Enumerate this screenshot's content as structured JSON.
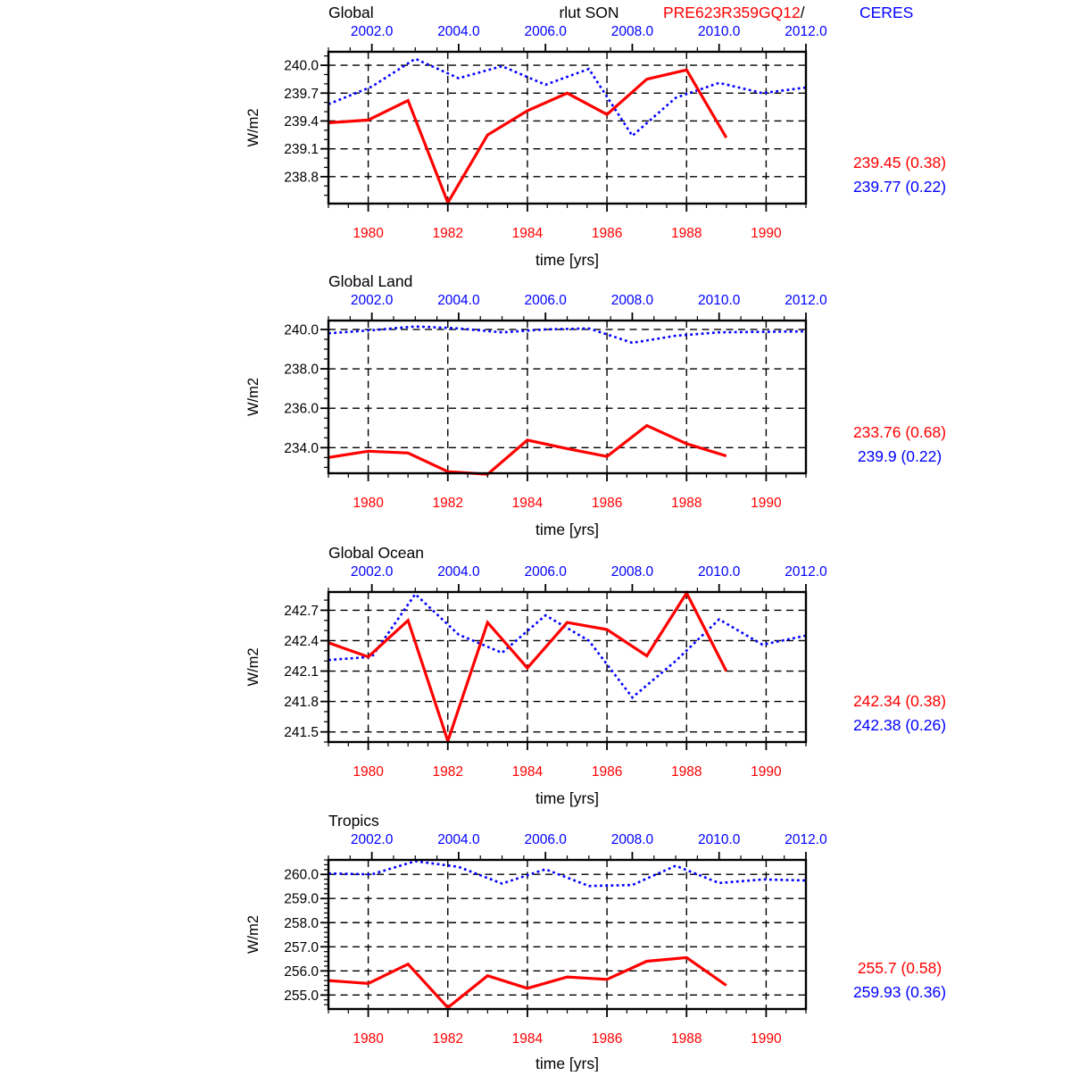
{
  "page": {
    "background": "#ffffff"
  },
  "header": {
    "center_title": "rlut SON",
    "model_label": "PRE623R359GQ12",
    "separator": "/",
    "reference_label": "CERES",
    "model_color": "#ff0000",
    "reference_color": "#0000ff"
  },
  "chart_data": [
    {
      "type": "line",
      "id": "global",
      "title": "Global",
      "ylabel": "W/m2",
      "xlabel": "time [yrs]",
      "ylim": [
        238.51,
        240.145
      ],
      "ytick_values": [
        238.8,
        239.1,
        239.4,
        239.7,
        240.0
      ],
      "ytick_labels": [
        "238.8",
        "239.1",
        "239.4",
        "239.7",
        "240.0"
      ],
      "y_minor_step": 0.1,
      "x_bottom": {
        "lim": [
          1979,
          1991
        ],
        "tick_values": [
          1980,
          1982,
          1984,
          1986,
          1988,
          1990
        ],
        "tick_labels": [
          "1980",
          "1982",
          "1984",
          "1986",
          "1988",
          "1990"
        ],
        "minor_step": 0.5,
        "label_color": "#ff0000"
      },
      "x_top": {
        "lim": [
          2001,
          2012
        ],
        "tick_values": [
          2002,
          2004,
          2006,
          2008,
          2010,
          2012
        ],
        "tick_labels": [
          "2002.0",
          "2004.0",
          "2006.0",
          "2008.0",
          "2010.0",
          "2012.0"
        ],
        "minor_step": 0.5,
        "label_color": "#0000ff"
      },
      "series": [
        {
          "name": "CERES",
          "axis": "top",
          "color": "#0000ff",
          "style": "dotted",
          "x": [
            2001,
            2002,
            2003,
            2004,
            2005,
            2006,
            2007,
            2008,
            2009,
            2010,
            2011,
            2012
          ],
          "y": [
            239.58,
            239.77,
            240.07,
            239.86,
            239.99,
            239.79,
            239.96,
            239.24,
            239.65,
            239.81,
            239.7,
            239.76
          ]
        },
        {
          "name": "PRE623R359GQ12",
          "axis": "bottom",
          "color": "#ff0000",
          "style": "solid",
          "x": [
            1979,
            1980,
            1981,
            1982,
            1983,
            1984,
            1985,
            1986,
            1987,
            1988,
            1989
          ],
          "y": [
            239.38,
            239.41,
            239.62,
            238.52,
            239.25,
            239.51,
            239.7,
            239.47,
            239.85,
            239.95,
            239.22
          ]
        }
      ],
      "stats": [
        {
          "text": "239.45 (0.38)",
          "color": "#ff0000"
        },
        {
          "text": "239.77 (0.22)",
          "color": "#0000ff"
        }
      ]
    },
    {
      "type": "line",
      "id": "global-land",
      "title": "Global Land",
      "ylabel": "W/m2",
      "xlabel": "time [yrs]",
      "ylim": [
        232.7,
        240.45
      ],
      "ytick_values": [
        234.0,
        236.0,
        238.0,
        240.0
      ],
      "ytick_labels": [
        "234.0",
        "236.0",
        "238.0",
        "240.0"
      ],
      "y_minor_step": 0.5,
      "x_bottom": {
        "lim": [
          1979,
          1991
        ],
        "tick_values": [
          1980,
          1982,
          1984,
          1986,
          1988,
          1990
        ],
        "tick_labels": [
          "1980",
          "1982",
          "1984",
          "1986",
          "1988",
          "1990"
        ],
        "minor_step": 0.5,
        "label_color": "#ff0000"
      },
      "x_top": {
        "lim": [
          2001,
          2012
        ],
        "tick_values": [
          2002,
          2004,
          2006,
          2008,
          2010,
          2012
        ],
        "tick_labels": [
          "2002.0",
          "2004.0",
          "2006.0",
          "2008.0",
          "2010.0",
          "2012.0"
        ],
        "minor_step": 0.5,
        "label_color": "#0000ff"
      },
      "series": [
        {
          "name": "CERES",
          "axis": "top",
          "color": "#0000ff",
          "style": "dotted",
          "x": [
            2001,
            2002,
            2003,
            2004,
            2005,
            2006,
            2007,
            2008,
            2009,
            2010,
            2011,
            2012
          ],
          "y": [
            239.8,
            239.96,
            240.15,
            240.05,
            239.85,
            240.0,
            240.05,
            239.32,
            239.68,
            239.85,
            239.88,
            239.9
          ]
        },
        {
          "name": "PRE623R359GQ12",
          "axis": "bottom",
          "color": "#ff0000",
          "style": "solid",
          "x": [
            1979,
            1980,
            1981,
            1982,
            1983,
            1984,
            1985,
            1986,
            1987,
            1988,
            1989
          ],
          "y": [
            233.5,
            233.82,
            233.73,
            232.78,
            232.65,
            234.38,
            233.95,
            233.55,
            235.12,
            234.2,
            233.58
          ]
        }
      ],
      "stats": [
        {
          "text": "233.76 (0.68)",
          "color": "#ff0000"
        },
        {
          "text": "239.9 (0.22)",
          "color": "#0000ff"
        }
      ]
    },
    {
      "type": "line",
      "id": "global-ocean",
      "title": "Global Ocean",
      "ylabel": "W/m2",
      "xlabel": "time [yrs]",
      "ylim": [
        241.4,
        242.88
      ],
      "ytick_values": [
        241.5,
        241.8,
        242.1,
        242.4,
        242.7
      ],
      "ytick_labels": [
        "241.5",
        "241.8",
        "242.1",
        "242.4",
        "242.7"
      ],
      "y_minor_step": 0.1,
      "x_bottom": {
        "lim": [
          1979,
          1991
        ],
        "tick_values": [
          1980,
          1982,
          1984,
          1986,
          1988,
          1990
        ],
        "tick_labels": [
          "1980",
          "1982",
          "1984",
          "1986",
          "1988",
          "1990"
        ],
        "minor_step": 0.5,
        "label_color": "#ff0000"
      },
      "x_top": {
        "lim": [
          2001,
          2012
        ],
        "tick_values": [
          2002,
          2004,
          2006,
          2008,
          2010,
          2012
        ],
        "tick_labels": [
          "2002.0",
          "2004.0",
          "2006.0",
          "2008.0",
          "2010.0",
          "2012.0"
        ],
        "minor_step": 0.5,
        "label_color": "#0000ff"
      },
      "series": [
        {
          "name": "CERES",
          "axis": "top",
          "color": "#0000ff",
          "style": "dotted",
          "x": [
            2001,
            2002,
            2003,
            2004,
            2005,
            2006,
            2007,
            2008,
            2009,
            2010,
            2011,
            2012
          ],
          "y": [
            242.21,
            242.24,
            242.86,
            242.46,
            242.28,
            242.65,
            242.4,
            241.84,
            242.2,
            242.61,
            242.36,
            242.45
          ]
        },
        {
          "name": "PRE623R359GQ12",
          "axis": "bottom",
          "color": "#ff0000",
          "style": "solid",
          "x": [
            1979,
            1980,
            1981,
            1982,
            1983,
            1984,
            1985,
            1986,
            1987,
            1988,
            1989
          ],
          "y": [
            242.38,
            242.24,
            242.6,
            241.41,
            242.58,
            242.13,
            242.58,
            242.51,
            242.25,
            242.87,
            242.1
          ]
        }
      ],
      "stats": [
        {
          "text": "242.34 (0.38)",
          "color": "#ff0000"
        },
        {
          "text": "242.38 (0.26)",
          "color": "#0000ff"
        }
      ]
    },
    {
      "type": "line",
      "id": "tropics",
      "title": "Tropics",
      "ylabel": "W/m2",
      "xlabel": "time [yrs]",
      "ylim": [
        254.42,
        260.6
      ],
      "ytick_values": [
        255.0,
        256.0,
        257.0,
        258.0,
        259.0,
        260.0
      ],
      "ytick_labels": [
        "255.0",
        "256.0",
        "257.0",
        "258.0",
        "259.0",
        "260.0"
      ],
      "y_minor_step": 0.2,
      "x_bottom": {
        "lim": [
          1979,
          1991
        ],
        "tick_values": [
          1980,
          1982,
          1984,
          1986,
          1988,
          1990
        ],
        "tick_labels": [
          "1980",
          "1982",
          "1984",
          "1986",
          "1988",
          "1990"
        ],
        "minor_step": 0.5,
        "label_color": "#ff0000"
      },
      "x_top": {
        "lim": [
          2001,
          2012
        ],
        "tick_values": [
          2002,
          2004,
          2006,
          2008,
          2010,
          2012
        ],
        "tick_labels": [
          "2002.0",
          "2004.0",
          "2006.0",
          "2008.0",
          "2010.0",
          "2012.0"
        ],
        "minor_step": 0.5,
        "label_color": "#0000ff"
      },
      "series": [
        {
          "name": "CERES",
          "axis": "top",
          "color": "#0000ff",
          "style": "dotted",
          "x": [
            2001,
            2002,
            2003,
            2004,
            2005,
            2006,
            2007,
            2008,
            2009,
            2010,
            2011,
            2012
          ],
          "y": [
            260.04,
            260.0,
            260.55,
            260.31,
            259.62,
            260.21,
            259.52,
            259.56,
            260.36,
            259.64,
            259.79,
            259.75
          ]
        },
        {
          "name": "PRE623R359GQ12",
          "axis": "bottom",
          "color": "#ff0000",
          "style": "solid",
          "x": [
            1979,
            1980,
            1981,
            1982,
            1983,
            1984,
            1985,
            1986,
            1987,
            1988,
            1989
          ],
          "y": [
            255.6,
            255.48,
            256.28,
            254.48,
            255.8,
            255.28,
            255.75,
            255.65,
            256.4,
            256.55,
            255.4
          ]
        }
      ],
      "stats": [
        {
          "text": "255.7 (0.58)",
          "color": "#ff0000"
        },
        {
          "text": "259.93 (0.36)",
          "color": "#0000ff"
        }
      ]
    }
  ]
}
